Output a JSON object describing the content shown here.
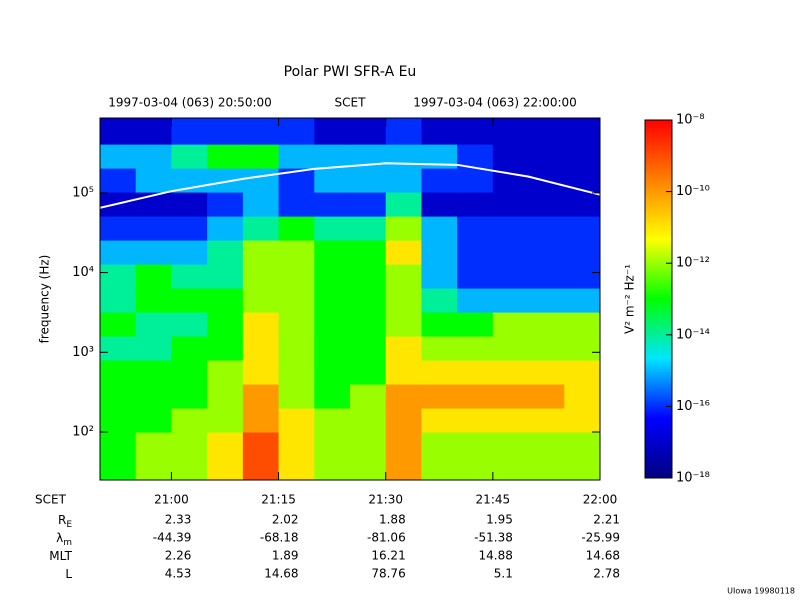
{
  "chart_data": {
    "type": "heatmap",
    "title": "Polar PWI SFR-A Eu",
    "top_labels": [
      "1997-03-04 (063) 20:50:00",
      "SCET",
      "1997-03-04 (063) 22:00:00"
    ],
    "ylabel": "frequency (Hz)",
    "yscale": "log",
    "xlim": [
      "20:50",
      "22:00"
    ],
    "xticks": [
      "21:00",
      "21:15",
      "21:30",
      "21:45",
      "22:00"
    ],
    "ylim": [
      25,
      870000
    ],
    "yticks": [
      {
        "value": 100,
        "label": "10²"
      },
      {
        "value": 1000,
        "label": "10³"
      },
      {
        "value": 10000,
        "label": "10⁴"
      },
      {
        "value": 100000,
        "label": "10⁵"
      }
    ],
    "x_edges": [
      "20:50",
      "20:55",
      "21:00",
      "21:05",
      "21:10",
      "21:15",
      "21:20",
      "21:25",
      "21:30",
      "21:35",
      "21:40",
      "21:45",
      "21:50",
      "21:55",
      "22:00"
    ],
    "y_edges": [
      25,
      50,
      100,
      200,
      400,
      800,
      1600,
      3200,
      6400,
      12800,
      25600,
      51200,
      102400,
      204800,
      409600,
      870000
    ],
    "values": [
      [
        1e-13,
        1e-12,
        1e-12,
        1e-11,
        1e-09,
        1e-11,
        1e-12,
        1e-12,
        1e-10,
        1e-12,
        1e-12,
        1e-12,
        1e-12,
        1e-12
      ],
      [
        1e-13,
        1e-12,
        1e-12,
        1e-11,
        1e-09,
        1e-11,
        1e-12,
        1e-12,
        1e-10,
        1e-12,
        1e-12,
        1e-12,
        1e-12,
        1e-12
      ],
      [
        1e-13,
        1e-13,
        1e-12,
        1e-12,
        1e-10,
        1e-11,
        1e-12,
        1e-12,
        1e-10,
        1e-11,
        1e-11,
        1e-11,
        1e-11,
        1e-11
      ],
      [
        1e-13,
        1e-13,
        1e-13,
        1e-12,
        1e-10,
        1e-12,
        1e-13,
        1e-12,
        1e-10,
        1e-10,
        1e-10,
        1e-10,
        1e-10,
        1e-11
      ],
      [
        1e-13,
        1e-13,
        1e-13,
        1e-12,
        1e-11,
        1e-12,
        1e-13,
        1e-13,
        1e-11,
        1e-11,
        1e-11,
        1e-11,
        1e-11,
        1e-11
      ],
      [
        1e-14,
        1e-14,
        1e-13,
        1e-13,
        1e-11,
        1e-12,
        1e-13,
        1e-13,
        1e-11,
        1e-12,
        1e-12,
        1e-12,
        1e-12,
        1e-12
      ],
      [
        1e-13,
        1e-14,
        1e-14,
        1e-13,
        1e-11,
        1e-12,
        1e-13,
        1e-13,
        1e-12,
        1e-13,
        1e-13,
        1e-12,
        1e-12,
        1e-12
      ],
      [
        1e-14,
        1e-13,
        1e-13,
        1e-13,
        1e-12,
        1e-12,
        1e-13,
        1e-13,
        1e-12,
        1e-14,
        1e-15,
        1e-15,
        1e-15,
        1e-15
      ],
      [
        1e-14,
        1e-13,
        1e-14,
        1e-14,
        1e-12,
        1e-12,
        1e-13,
        1e-13,
        1e-12,
        1e-15,
        1e-16,
        1e-16,
        1e-16,
        1e-16
      ],
      [
        1e-15,
        1e-15,
        1e-15,
        1e-14,
        1e-12,
        1e-12,
        1e-13,
        1e-13,
        1e-11,
        1e-15,
        1e-16,
        1e-16,
        1e-16,
        1e-16
      ],
      [
        1e-16,
        1e-16,
        1e-16,
        1e-15,
        1e-14,
        1e-13,
        1e-14,
        1e-14,
        1e-12,
        1e-15,
        1e-16,
        1e-16,
        1e-16,
        1e-16
      ],
      [
        1e-17,
        1e-17,
        1e-17,
        1e-16,
        1e-15,
        1e-16,
        1e-16,
        1e-16,
        1e-14,
        1e-17,
        1e-17,
        1e-17,
        1e-17,
        1e-17
      ],
      [
        1e-16,
        1e-15,
        1e-15,
        1e-15,
        1e-15,
        1e-16,
        1e-15,
        1e-15,
        1e-15,
        1e-16,
        1e-16,
        1e-17,
        1e-17,
        1e-17
      ],
      [
        1e-15,
        1e-15,
        1e-14,
        1e-13,
        1e-13,
        1e-15,
        1e-15,
        1e-15,
        1e-15,
        1e-15,
        1e-16,
        1e-17,
        1e-17,
        1e-17
      ],
      [
        1e-17,
        1e-17,
        1e-16,
        1e-16,
        1e-16,
        1e-16,
        1e-17,
        1e-17,
        1e-16,
        1e-17,
        1e-17,
        1e-17,
        1e-17,
        1e-17
      ]
    ],
    "colormap": [
      "#00007f",
      "#0000ff",
      "#00e5ff",
      "#00ff00",
      "#ffff00",
      "#ff8000",
      "#ff0000"
    ],
    "zlim": [
      1e-18,
      1e-08
    ],
    "zscale": "log",
    "zticks": [
      {
        "value": 1e-08,
        "label": "10⁻⁸"
      },
      {
        "value": 1e-10,
        "label": "10⁻¹⁰"
      },
      {
        "value": 1e-12,
        "label": "10⁻¹²"
      },
      {
        "value": 1e-14,
        "label": "10⁻¹⁴"
      },
      {
        "value": 1e-16,
        "label": "10⁻¹⁶"
      },
      {
        "value": 1e-18,
        "label": "10⁻¹⁸"
      }
    ],
    "zlabel": "V² m⁻² Hz⁻¹",
    "line": {
      "color": "#ffffff",
      "x": [
        "20:50",
        "21:00",
        "21:10",
        "21:20",
        "21:30",
        "21:40",
        "21:50",
        "22:00"
      ],
      "values": [
        65000,
        105000,
        150000,
        200000,
        235000,
        225000,
        160000,
        95000
      ]
    },
    "ephemeris": {
      "scet_label": "SCET",
      "rows": [
        {
          "label": "R",
          "sub": "E",
          "values": [
            2.33,
            2.02,
            1.88,
            1.95,
            2.21
          ]
        },
        {
          "label": "λ",
          "sub": "m",
          "values": [
            -44.39,
            -68.18,
            -81.06,
            -51.38,
            -25.99
          ]
        },
        {
          "label": "MLT",
          "values": [
            2.26,
            1.89,
            16.21,
            14.88,
            14.68
          ]
        },
        {
          "label": "L",
          "values": [
            4.53,
            14.68,
            78.76,
            5.1,
            2.78
          ]
        }
      ]
    },
    "footer": "UIowa 19980118"
  }
}
